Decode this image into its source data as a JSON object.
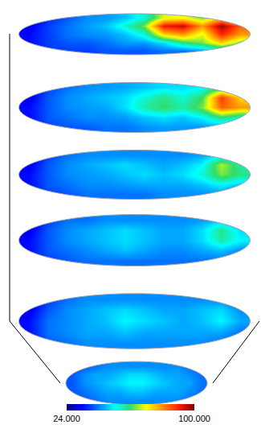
{
  "chart_data": {
    "type": "heatmap",
    "slices": [
      {
        "cells": [
          [
            36,
            38,
            38,
            38,
            40,
            40,
            40,
            42,
            42,
            45,
            50,
            45
          ],
          [
            34,
            38,
            40,
            40,
            42,
            45,
            45,
            50,
            60,
            65,
            75,
            65
          ],
          [
            34,
            38,
            42,
            44,
            45,
            48,
            55,
            75,
            80,
            70,
            90,
            80
          ],
          [
            32,
            38,
            42,
            45,
            48,
            55,
            65,
            92,
            95,
            80,
            98,
            85
          ],
          [
            30,
            36,
            40,
            44,
            45,
            48,
            55,
            70,
            72,
            65,
            75,
            60
          ]
        ]
      },
      {
        "cells": [
          [
            34,
            38,
            40,
            40,
            42,
            42,
            44,
            45,
            45,
            44,
            45,
            42
          ],
          [
            34,
            40,
            42,
            44,
            44,
            45,
            48,
            50,
            48,
            52,
            60,
            55
          ],
          [
            34,
            40,
            44,
            45,
            46,
            50,
            58,
            62,
            58,
            65,
            85,
            80
          ],
          [
            32,
            40,
            44,
            46,
            48,
            50,
            55,
            60,
            55,
            62,
            88,
            75
          ],
          [
            30,
            38,
            42,
            44,
            45,
            46,
            48,
            50,
            50,
            52,
            58,
            50
          ]
        ]
      },
      {
        "cells": [
          [
            34,
            38,
            40,
            42,
            42,
            42,
            42,
            44,
            44,
            44,
            44,
            40
          ],
          [
            34,
            40,
            42,
            44,
            44,
            45,
            46,
            46,
            46,
            48,
            52,
            48
          ],
          [
            34,
            40,
            44,
            45,
            46,
            48,
            50,
            48,
            50,
            55,
            65,
            60
          ],
          [
            32,
            40,
            44,
            46,
            48,
            50,
            48,
            46,
            48,
            52,
            68,
            58
          ],
          [
            30,
            38,
            42,
            44,
            44,
            44,
            44,
            44,
            44,
            46,
            50,
            44
          ]
        ]
      },
      {
        "cells": [
          [
            34,
            38,
            40,
            42,
            42,
            42,
            42,
            42,
            42,
            42,
            42,
            40
          ],
          [
            34,
            40,
            42,
            44,
            46,
            48,
            46,
            44,
            44,
            46,
            48,
            44
          ],
          [
            34,
            40,
            44,
            46,
            48,
            50,
            48,
            46,
            46,
            50,
            58,
            52
          ],
          [
            32,
            40,
            44,
            46,
            48,
            50,
            48,
            46,
            46,
            50,
            60,
            50
          ],
          [
            30,
            38,
            42,
            42,
            44,
            44,
            44,
            44,
            44,
            45,
            48,
            42
          ]
        ]
      },
      {
        "cells": [
          [
            34,
            40,
            42,
            44,
            44,
            44,
            44,
            44,
            44,
            44,
            42,
            40
          ],
          [
            34,
            42,
            44,
            46,
            46,
            48,
            46,
            46,
            46,
            46,
            46,
            42
          ],
          [
            34,
            42,
            44,
            46,
            48,
            52,
            50,
            48,
            46,
            48,
            52,
            46
          ],
          [
            32,
            40,
            44,
            46,
            48,
            50,
            48,
            46,
            46,
            48,
            50,
            44
          ],
          [
            30,
            38,
            42,
            44,
            44,
            44,
            44,
            44,
            44,
            44,
            44,
            40
          ]
        ]
      },
      {
        "cells": [
          [
            38,
            40,
            42,
            44,
            44,
            44,
            44,
            44,
            44,
            44,
            42,
            40
          ],
          [
            40,
            42,
            44,
            46,
            46,
            48,
            48,
            46,
            46,
            46,
            44,
            42
          ],
          [
            40,
            44,
            46,
            48,
            50,
            52,
            52,
            50,
            48,
            46,
            46,
            42
          ],
          [
            40,
            44,
            46,
            46,
            48,
            50,
            50,
            48,
            46,
            46,
            44,
            42
          ],
          [
            38,
            40,
            42,
            44,
            44,
            44,
            44,
            44,
            44,
            44,
            42,
            40
          ]
        ]
      }
    ],
    "colorbar": {
      "range": [
        24,
        100
      ],
      "ticks": [
        {
          "value": 24,
          "label": "24.000"
        },
        {
          "value": 100,
          "label": "100.000"
        }
      ]
    }
  }
}
